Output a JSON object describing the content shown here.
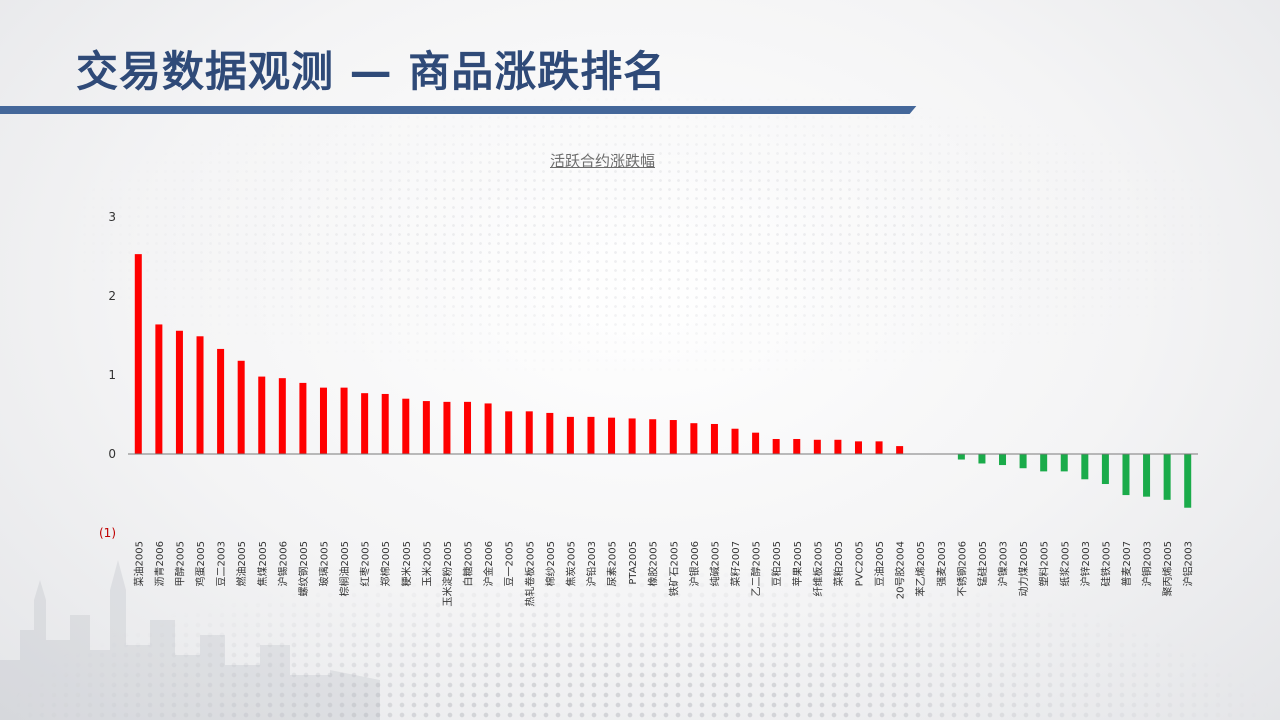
{
  "page": {
    "title": "交易数据观测 — 商品涨跌排名"
  },
  "colors": {
    "title": "#2f4a78",
    "title_bar": "#44679a",
    "positive": "#ff0000",
    "negative": "#1aab4a",
    "negative_tick_label": "#c00000"
  },
  "chart_data": {
    "type": "bar",
    "title": "活跃合约涨跌幅",
    "xlabel": "",
    "ylabel": "",
    "ylim": [
      -1,
      3
    ],
    "yticks": [
      3,
      2,
      1,
      0,
      -1
    ],
    "ytick_labels": [
      "3",
      "2",
      "1",
      "0",
      "(1)"
    ],
    "grid": false,
    "legend": "none",
    "categories": [
      "菜油2005",
      "沥青2006",
      "甲醇2005",
      "鸡蛋2005",
      "豆二2003",
      "燃油2005",
      "焦煤2005",
      "沪锡2006",
      "螺纹钢2005",
      "玻璃2005",
      "棕榈油2005",
      "红枣2005",
      "郑棉2005",
      "粳米2005",
      "玉米2005",
      "玉米淀粉2005",
      "白糖2005",
      "沪金2006",
      "豆一2005",
      "热轧卷板2005",
      "棉纱2005",
      "焦炭2005",
      "沪铅2003",
      "尿素2005",
      "PTA2005",
      "橡胶2005",
      "铁矿石2005",
      "沪银2006",
      "纯碱2005",
      "菜籽2007",
      "乙二醇2005",
      "豆粕2005",
      "苹果2005",
      "纤维板2005",
      "菜粕2005",
      "PVC2005",
      "豆油2005",
      "20号胶2004",
      "苯乙烯2005",
      "强麦2003",
      "不锈钢2006",
      "锰硅2005",
      "沪镍2003",
      "动力煤2005",
      "塑料2005",
      "纸浆2005",
      "沪锌2003",
      "硅铁2005",
      "普麦2007",
      "沪铜2003",
      "聚丙烯2005",
      "沪铝2003"
    ],
    "values": [
      2.53,
      1.64,
      1.56,
      1.49,
      1.33,
      1.18,
      0.98,
      0.96,
      0.9,
      0.84,
      0.84,
      0.77,
      0.76,
      0.7,
      0.67,
      0.66,
      0.66,
      0.64,
      0.54,
      0.54,
      0.52,
      0.47,
      0.47,
      0.46,
      0.45,
      0.44,
      0.43,
      0.39,
      0.38,
      0.32,
      0.27,
      0.19,
      0.19,
      0.18,
      0.18,
      0.16,
      0.16,
      0.1,
      0.0,
      0.0,
      -0.07,
      -0.12,
      -0.14,
      -0.18,
      -0.22,
      -0.22,
      -0.32,
      -0.38,
      -0.52,
      -0.54,
      -0.58,
      -0.68
    ]
  }
}
